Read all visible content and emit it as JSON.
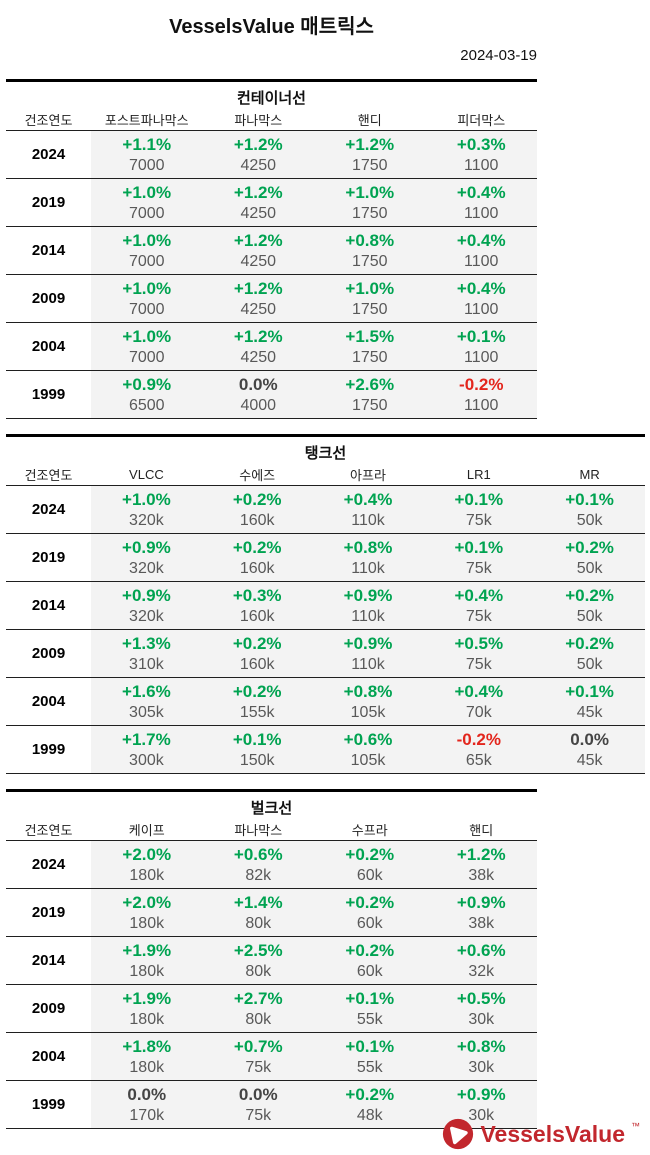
{
  "header": {
    "title": "VesselsValue 매트릭스",
    "date": "2024-03-19"
  },
  "tables": [
    {
      "section_title": "컨테이너선",
      "year_header": "건조연도",
      "columns": [
        "포스트파나막스",
        "파나막스",
        "핸디",
        "피더막스"
      ],
      "rows": [
        {
          "year": "2024",
          "cells": [
            {
              "pct": "+1.1%",
              "val": "7000",
              "tone": "pos"
            },
            {
              "pct": "+1.2%",
              "val": "4250",
              "tone": "pos"
            },
            {
              "pct": "+1.2%",
              "val": "1750",
              "tone": "pos"
            },
            {
              "pct": "+0.3%",
              "val": "1100",
              "tone": "pos"
            }
          ]
        },
        {
          "year": "2019",
          "cells": [
            {
              "pct": "+1.0%",
              "val": "7000",
              "tone": "pos"
            },
            {
              "pct": "+1.2%",
              "val": "4250",
              "tone": "pos"
            },
            {
              "pct": "+1.0%",
              "val": "1750",
              "tone": "pos"
            },
            {
              "pct": "+0.4%",
              "val": "1100",
              "tone": "pos"
            }
          ]
        },
        {
          "year": "2014",
          "cells": [
            {
              "pct": "+1.0%",
              "val": "7000",
              "tone": "pos"
            },
            {
              "pct": "+1.2%",
              "val": "4250",
              "tone": "pos"
            },
            {
              "pct": "+0.8%",
              "val": "1750",
              "tone": "pos"
            },
            {
              "pct": "+0.4%",
              "val": "1100",
              "tone": "pos"
            }
          ]
        },
        {
          "year": "2009",
          "cells": [
            {
              "pct": "+1.0%",
              "val": "7000",
              "tone": "pos"
            },
            {
              "pct": "+1.2%",
              "val": "4250",
              "tone": "pos"
            },
            {
              "pct": "+1.0%",
              "val": "1750",
              "tone": "pos"
            },
            {
              "pct": "+0.4%",
              "val": "1100",
              "tone": "pos"
            }
          ]
        },
        {
          "year": "2004",
          "cells": [
            {
              "pct": "+1.0%",
              "val": "7000",
              "tone": "pos"
            },
            {
              "pct": "+1.2%",
              "val": "4250",
              "tone": "pos"
            },
            {
              "pct": "+1.5%",
              "val": "1750",
              "tone": "pos"
            },
            {
              "pct": "+0.1%",
              "val": "1100",
              "tone": "pos"
            }
          ]
        },
        {
          "year": "1999",
          "cells": [
            {
              "pct": "+0.9%",
              "val": "6500",
              "tone": "pos"
            },
            {
              "pct": "0.0%",
              "val": "4000",
              "tone": "zero"
            },
            {
              "pct": "+2.6%",
              "val": "1750",
              "tone": "pos"
            },
            {
              "pct": "-0.2%",
              "val": "1100",
              "tone": "neg"
            }
          ]
        }
      ]
    },
    {
      "section_title": "탱크선",
      "year_header": "건조연도",
      "columns": [
        "VLCC",
        "수에즈",
        "아프라",
        "LR1",
        "MR"
      ],
      "rows": [
        {
          "year": "2024",
          "cells": [
            {
              "pct": "+1.0%",
              "val": "320k",
              "tone": "pos"
            },
            {
              "pct": "+0.2%",
              "val": "160k",
              "tone": "pos"
            },
            {
              "pct": "+0.4%",
              "val": "110k",
              "tone": "pos"
            },
            {
              "pct": "+0.1%",
              "val": "75k",
              "tone": "pos"
            },
            {
              "pct": "+0.1%",
              "val": "50k",
              "tone": "pos"
            }
          ]
        },
        {
          "year": "2019",
          "cells": [
            {
              "pct": "+0.9%",
              "val": "320k",
              "tone": "pos"
            },
            {
              "pct": "+0.2%",
              "val": "160k",
              "tone": "pos"
            },
            {
              "pct": "+0.8%",
              "val": "110k",
              "tone": "pos"
            },
            {
              "pct": "+0.1%",
              "val": "75k",
              "tone": "pos"
            },
            {
              "pct": "+0.2%",
              "val": "50k",
              "tone": "pos"
            }
          ]
        },
        {
          "year": "2014",
          "cells": [
            {
              "pct": "+0.9%",
              "val": "320k",
              "tone": "pos"
            },
            {
              "pct": "+0.3%",
              "val": "160k",
              "tone": "pos"
            },
            {
              "pct": "+0.9%",
              "val": "110k",
              "tone": "pos"
            },
            {
              "pct": "+0.4%",
              "val": "75k",
              "tone": "pos"
            },
            {
              "pct": "+0.2%",
              "val": "50k",
              "tone": "pos"
            }
          ]
        },
        {
          "year": "2009",
          "cells": [
            {
              "pct": "+1.3%",
              "val": "310k",
              "tone": "pos"
            },
            {
              "pct": "+0.2%",
              "val": "160k",
              "tone": "pos"
            },
            {
              "pct": "+0.9%",
              "val": "110k",
              "tone": "pos"
            },
            {
              "pct": "+0.5%",
              "val": "75k",
              "tone": "pos"
            },
            {
              "pct": "+0.2%",
              "val": "50k",
              "tone": "pos"
            }
          ]
        },
        {
          "year": "2004",
          "cells": [
            {
              "pct": "+1.6%",
              "val": "305k",
              "tone": "pos"
            },
            {
              "pct": "+0.2%",
              "val": "155k",
              "tone": "pos"
            },
            {
              "pct": "+0.8%",
              "val": "105k",
              "tone": "pos"
            },
            {
              "pct": "+0.4%",
              "val": "70k",
              "tone": "pos"
            },
            {
              "pct": "+0.1%",
              "val": "45k",
              "tone": "pos"
            }
          ]
        },
        {
          "year": "1999",
          "cells": [
            {
              "pct": "+1.7%",
              "val": "300k",
              "tone": "pos"
            },
            {
              "pct": "+0.1%",
              "val": "150k",
              "tone": "pos"
            },
            {
              "pct": "+0.6%",
              "val": "105k",
              "tone": "pos"
            },
            {
              "pct": "-0.2%",
              "val": "65k",
              "tone": "neg"
            },
            {
              "pct": "0.0%",
              "val": "45k",
              "tone": "zero"
            }
          ]
        }
      ]
    },
    {
      "section_title": "벌크선",
      "year_header": "건조연도",
      "columns": [
        "케이프",
        "파나막스",
        "수프라",
        "핸디"
      ],
      "rows": [
        {
          "year": "2024",
          "cells": [
            {
              "pct": "+2.0%",
              "val": "180k",
              "tone": "pos"
            },
            {
              "pct": "+0.6%",
              "val": "82k",
              "tone": "pos"
            },
            {
              "pct": "+0.2%",
              "val": "60k",
              "tone": "pos"
            },
            {
              "pct": "+1.2%",
              "val": "38k",
              "tone": "pos"
            }
          ]
        },
        {
          "year": "2019",
          "cells": [
            {
              "pct": "+2.0%",
              "val": "180k",
              "tone": "pos"
            },
            {
              "pct": "+1.4%",
              "val": "80k",
              "tone": "pos"
            },
            {
              "pct": "+0.2%",
              "val": "60k",
              "tone": "pos"
            },
            {
              "pct": "+0.9%",
              "val": "38k",
              "tone": "pos"
            }
          ]
        },
        {
          "year": "2014",
          "cells": [
            {
              "pct": "+1.9%",
              "val": "180k",
              "tone": "pos"
            },
            {
              "pct": "+2.5%",
              "val": "80k",
              "tone": "pos"
            },
            {
              "pct": "+0.2%",
              "val": "60k",
              "tone": "pos"
            },
            {
              "pct": "+0.6%",
              "val": "32k",
              "tone": "pos"
            }
          ]
        },
        {
          "year": "2009",
          "cells": [
            {
              "pct": "+1.9%",
              "val": "180k",
              "tone": "pos"
            },
            {
              "pct": "+2.7%",
              "val": "80k",
              "tone": "pos"
            },
            {
              "pct": "+0.1%",
              "val": "55k",
              "tone": "pos"
            },
            {
              "pct": "+0.5%",
              "val": "30k",
              "tone": "pos"
            }
          ]
        },
        {
          "year": "2004",
          "cells": [
            {
              "pct": "+1.8%",
              "val": "180k",
              "tone": "pos"
            },
            {
              "pct": "+0.7%",
              "val": "75k",
              "tone": "pos"
            },
            {
              "pct": "+0.1%",
              "val": "55k",
              "tone": "pos"
            },
            {
              "pct": "+0.8%",
              "val": "30k",
              "tone": "pos"
            }
          ]
        },
        {
          "year": "1999",
          "cells": [
            {
              "pct": "0.0%",
              "val": "170k",
              "tone": "zero"
            },
            {
              "pct": "0.0%",
              "val": "75k",
              "tone": "zero"
            },
            {
              "pct": "+0.2%",
              "val": "48k",
              "tone": "pos"
            },
            {
              "pct": "+0.9%",
              "val": "30k",
              "tone": "pos"
            }
          ]
        }
      ]
    }
  ],
  "footer": {
    "brand": "VesselsValue",
    "tm": "™"
  },
  "colors": {
    "pos": "#00a351",
    "neg": "#e3261d",
    "zero": "#454545",
    "val": "#595959",
    "cellbg": "#f3f3f3",
    "brand": "#c2272d"
  }
}
